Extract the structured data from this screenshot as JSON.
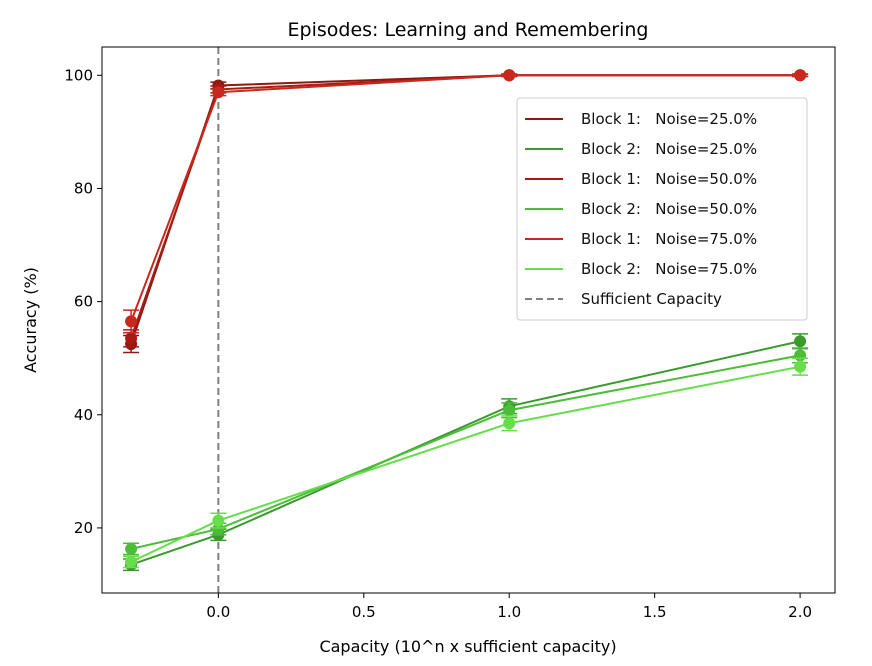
{
  "chart_data": {
    "type": "line",
    "title": "Episodes: Learning and Remembering",
    "xlabel": "Capacity (10^n x sufficient capacity)",
    "ylabel": "Accuracy (%)",
    "xlim": [
      -0.4,
      2.12
    ],
    "ylim": [
      8.5,
      105
    ],
    "xticks": [
      0.0,
      0.5,
      1.0,
      1.5,
      2.0
    ],
    "xtick_labels": [
      "0.0",
      "0.5",
      "1.0",
      "1.5",
      "2.0"
    ],
    "yticks": [
      20,
      40,
      60,
      80,
      100
    ],
    "ytick_labels": [
      "20",
      "40",
      "60",
      "80",
      "100"
    ],
    "grid": false,
    "legend_position": "upper-right",
    "x": [
      -0.3,
      0.0,
      1.0,
      2.0
    ],
    "series": [
      {
        "name": "Block 1:   Noise=25.0%",
        "color": "#8b1a12",
        "values": [
          52.5,
          98.2,
          100,
          100
        ],
        "errors": [
          1.5,
          0.6,
          0.2,
          0.2
        ]
      },
      {
        "name": "Block 2:   Noise=25.0%",
        "color": "#3a9a2e",
        "values": [
          13.5,
          18.8,
          41.5,
          53.0
        ],
        "errors": [
          1.0,
          1.0,
          1.3,
          1.3
        ]
      },
      {
        "name": "Block 1:   Noise=50.0%",
        "color": "#a61c14",
        "values": [
          53.5,
          97.5,
          100,
          100
        ],
        "errors": [
          1.5,
          0.6,
          0.2,
          0.2
        ]
      },
      {
        "name": "Block 2:   Noise=50.0%",
        "color": "#4cbd38",
        "values": [
          16.3,
          19.8,
          40.8,
          50.5
        ],
        "errors": [
          1.0,
          1.0,
          1.3,
          1.3
        ]
      },
      {
        "name": "Block 1:   Noise=75.0%",
        "color": "#c9281e",
        "values": [
          56.5,
          97.0,
          100,
          100
        ],
        "errors": [
          2.0,
          0.6,
          0.2,
          0.2
        ]
      },
      {
        "name": "Block 2:   Noise=75.0%",
        "color": "#66dd4a",
        "values": [
          14.0,
          21.3,
          38.5,
          48.5
        ],
        "errors": [
          1.0,
          1.3,
          1.3,
          1.5
        ]
      }
    ],
    "vlines": [
      {
        "x": 0.0,
        "name": "Sufficient Capacity",
        "color": "#808080",
        "style": "dashed"
      }
    ]
  }
}
